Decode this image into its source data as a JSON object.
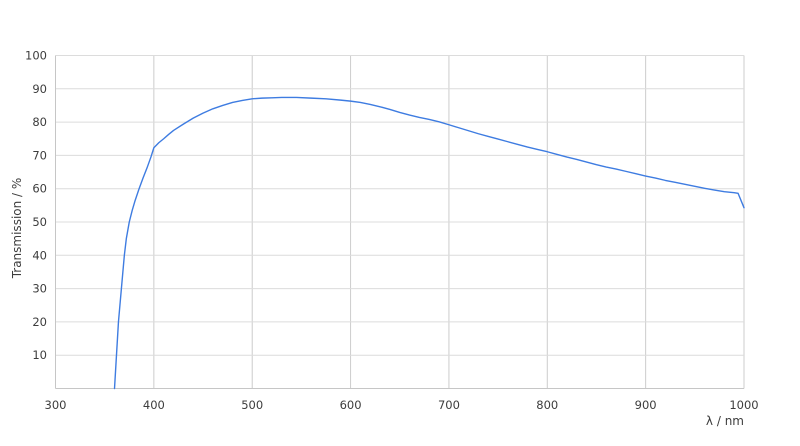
{
  "chart_data": {
    "type": "line",
    "xlabel": "λ / nm",
    "ylabel": "Transmission / %",
    "xlim": [
      300,
      1000
    ],
    "ylim": [
      0,
      100
    ],
    "xticks": [
      300,
      400,
      500,
      600,
      700,
      800,
      900,
      1000
    ],
    "yticks": [
      10,
      20,
      30,
      40,
      50,
      60,
      70,
      80,
      90,
      100
    ],
    "grid": true,
    "legend_visible": false,
    "colors": {
      "line": "#3e7ce1",
      "grid_horizontal": "#dcdcdc",
      "grid_vertical": "#cccccc",
      "axis": "#c6c6c6",
      "text": "#3d3d3d"
    },
    "series": [
      {
        "name": "Transmission",
        "points": [
          [
            360,
            0
          ],
          [
            361,
            5
          ],
          [
            362,
            10
          ],
          [
            363,
            15
          ],
          [
            364,
            20
          ],
          [
            365.5,
            25
          ],
          [
            367,
            30
          ],
          [
            368.5,
            35
          ],
          [
            370,
            40
          ],
          [
            372,
            45
          ],
          [
            375,
            50
          ],
          [
            378,
            53.5
          ],
          [
            381,
            56.5
          ],
          [
            385,
            60
          ],
          [
            389,
            63.2
          ],
          [
            393,
            66.2
          ],
          [
            397,
            69.5
          ],
          [
            400,
            72.3
          ],
          [
            405,
            73.8
          ],
          [
            410,
            75
          ],
          [
            415,
            76.3
          ],
          [
            420,
            77.5
          ],
          [
            430,
            79.4
          ],
          [
            440,
            81.2
          ],
          [
            450,
            82.7
          ],
          [
            460,
            84
          ],
          [
            470,
            85
          ],
          [
            480,
            85.9
          ],
          [
            490,
            86.5
          ],
          [
            500,
            87
          ],
          [
            510,
            87.2
          ],
          [
            520,
            87.3
          ],
          [
            530,
            87.4
          ],
          [
            545,
            87.4
          ],
          [
            560,
            87.2
          ],
          [
            575,
            87
          ],
          [
            590,
            86.6
          ],
          [
            600,
            86.3
          ],
          [
            610,
            85.9
          ],
          [
            620,
            85.3
          ],
          [
            630,
            84.6
          ],
          [
            640,
            83.8
          ],
          [
            650,
            82.9
          ],
          [
            660,
            82.1
          ],
          [
            670,
            81.4
          ],
          [
            680,
            80.8
          ],
          [
            690,
            80.1
          ],
          [
            700,
            79.2
          ],
          [
            710,
            78.3
          ],
          [
            720,
            77.4
          ],
          [
            730,
            76.5
          ],
          [
            740,
            75.7
          ],
          [
            750,
            74.9
          ],
          [
            760,
            74.1
          ],
          [
            770,
            73.3
          ],
          [
            780,
            72.5
          ],
          [
            790,
            71.8
          ],
          [
            800,
            71.1
          ],
          [
            810,
            70.3
          ],
          [
            820,
            69.5
          ],
          [
            830,
            68.8
          ],
          [
            840,
            68
          ],
          [
            850,
            67.2
          ],
          [
            860,
            66.5
          ],
          [
            870,
            65.9
          ],
          [
            880,
            65.2
          ],
          [
            890,
            64.5
          ],
          [
            900,
            63.8
          ],
          [
            910,
            63.2
          ],
          [
            920,
            62.5
          ],
          [
            930,
            61.9
          ],
          [
            940,
            61.3
          ],
          [
            950,
            60.7
          ],
          [
            960,
            60.1
          ],
          [
            970,
            59.6
          ],
          [
            980,
            59.1
          ],
          [
            990,
            58.8
          ],
          [
            994,
            58.6
          ],
          [
            1000,
            54.3
          ]
        ]
      }
    ]
  }
}
